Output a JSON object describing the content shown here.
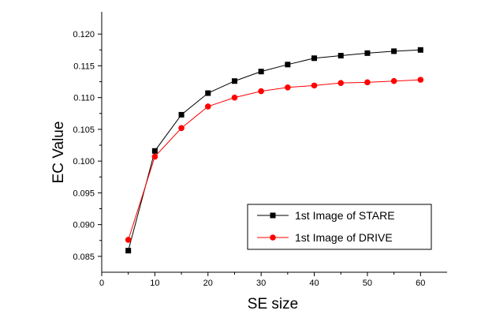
{
  "chart_data": {
    "type": "line",
    "xlabel": "SE size",
    "ylabel": "EC Value",
    "xlim": [
      0,
      65
    ],
    "ylim": [
      0.0825,
      0.1235
    ],
    "x_ticks": [
      0,
      10,
      20,
      30,
      40,
      50,
      60
    ],
    "y_ticks": [
      0.085,
      0.09,
      0.095,
      0.1,
      0.105,
      0.11,
      0.115,
      0.12
    ],
    "tick_labels_x": [
      "0",
      "10",
      "20",
      "30",
      "40",
      "50",
      "60"
    ],
    "tick_labels_y": [
      "0.085",
      "0.090",
      "0.095",
      "0.100",
      "0.105",
      "0.110",
      "0.115",
      "0.120"
    ],
    "grid": false,
    "legend_position": "bottom-right",
    "x": [
      5,
      10,
      15,
      20,
      25,
      30,
      35,
      40,
      45,
      50,
      55,
      60
    ],
    "series": [
      {
        "name": "1st Image of STARE",
        "color": "#000000",
        "marker": "square",
        "values": [
          0.0859,
          0.1016,
          0.1073,
          0.1107,
          0.1126,
          0.1141,
          0.1152,
          0.1162,
          0.1166,
          0.117,
          0.1173,
          0.1175
        ]
      },
      {
        "name": "1st Image of DRIVE",
        "color": "#ff0000",
        "marker": "circle",
        "values": [
          0.0876,
          0.1007,
          0.1052,
          0.1086,
          0.11,
          0.111,
          0.1116,
          0.1119,
          0.1123,
          0.1124,
          0.1126,
          0.1128
        ]
      }
    ]
  }
}
